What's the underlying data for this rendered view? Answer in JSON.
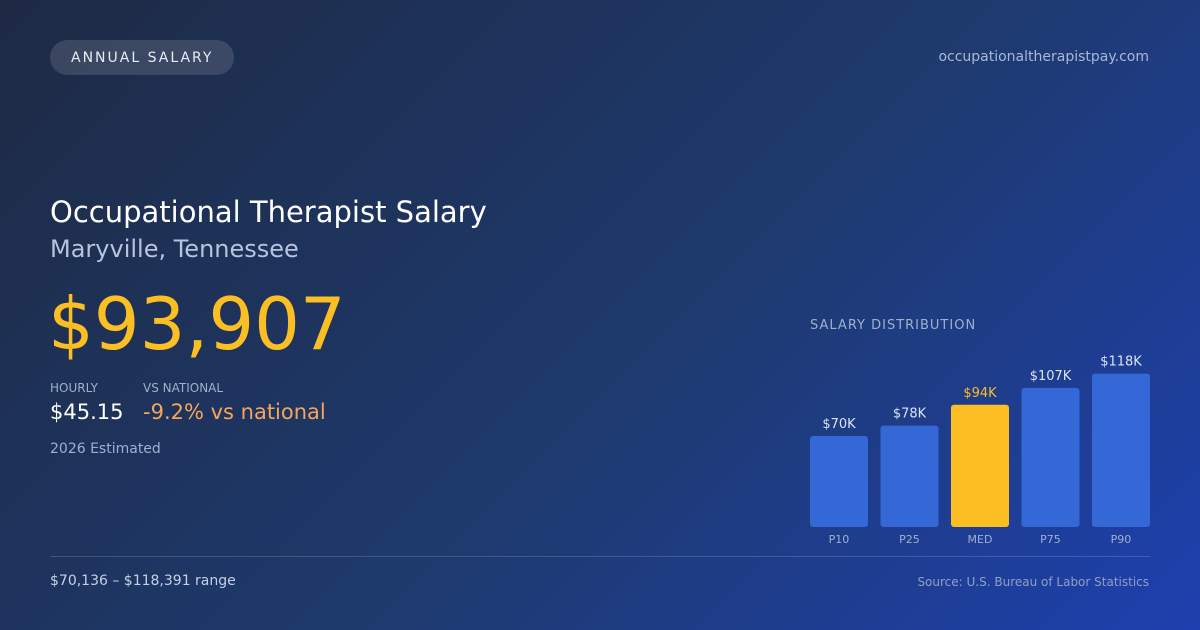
{
  "badge": "ANNUAL SALARY",
  "site": "occupationaltherapistpay.com",
  "title": "Occupational Therapist Salary",
  "location": "Maryville, Tennessee",
  "annual_salary": "$93,907",
  "stats": {
    "hourly_label": "HOURLY",
    "hourly_value": "$45.15",
    "national_label": "VS NATIONAL",
    "national_value": "-9.2% vs national"
  },
  "estimate_note": "2026 Estimated",
  "range_text": "$70,136 – $118,391 range",
  "source": "Source: U.S. Bureau of Labor Statistics",
  "colors": {
    "accent": "#fbbf24",
    "bar": "#3368d6",
    "negative": "#f6a55a"
  },
  "chart_data": {
    "type": "bar",
    "title": "SALARY DISTRIBUTION",
    "categories": [
      "P10",
      "P25",
      "MED",
      "P75",
      "P90"
    ],
    "values": [
      70,
      78,
      94,
      107,
      118
    ],
    "value_labels": [
      "$70K",
      "$78K",
      "$94K",
      "$107K",
      "$118K"
    ],
    "highlight_index": 2,
    "xlabel": "",
    "ylabel": "",
    "ylim": [
      0,
      130
    ],
    "grid": false
  }
}
